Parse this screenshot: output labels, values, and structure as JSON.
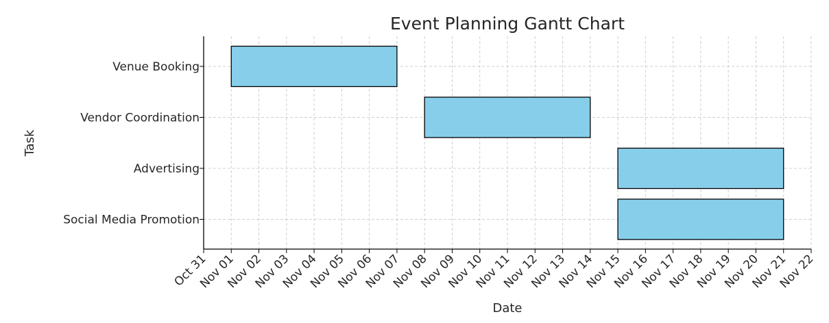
{
  "chart_data": {
    "type": "gantt",
    "title": "Event Planning Gantt Chart",
    "xlabel": "Date",
    "ylabel": "Task",
    "x_range": [
      "2023-10-31",
      "2023-11-22"
    ],
    "x_ticks": [
      "Oct 31",
      "Nov 01",
      "Nov 02",
      "Nov 03",
      "Nov 04",
      "Nov 05",
      "Nov 06",
      "Nov 07",
      "Nov 08",
      "Nov 09",
      "Nov 10",
      "Nov 11",
      "Nov 12",
      "Nov 13",
      "Nov 14",
      "Nov 15",
      "Nov 16",
      "Nov 17",
      "Nov 18",
      "Nov 19",
      "Nov 20",
      "Nov 21",
      "Nov 22"
    ],
    "grid": true,
    "bar_color": "#87CEEB",
    "tasks": [
      {
        "name": "Venue Booking",
        "start": "Nov 01",
        "end": "Nov 07"
      },
      {
        "name": "Vendor Coordination",
        "start": "Nov 08",
        "end": "Nov 14"
      },
      {
        "name": "Advertising",
        "start": "Nov 15",
        "end": "Nov 21"
      },
      {
        "name": "Social Media Promotion",
        "start": "Nov 15",
        "end": "Nov 21"
      }
    ]
  }
}
